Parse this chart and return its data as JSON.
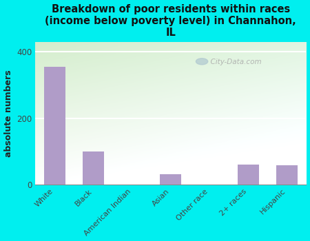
{
  "title": "Breakdown of poor residents within races\n(income below poverty level) in Channahon,\nIL",
  "ylabel": "absolute numbers",
  "categories": [
    "White",
    "Black",
    "American Indian",
    "Asian",
    "Other race",
    "2+ races",
    "Hispanic"
  ],
  "values": [
    355,
    100,
    0,
    30,
    0,
    60,
    58
  ],
  "bar_color": "#b09cc8",
  "bg_outer": "#00efef",
  "bg_plot_topleft": "#d4edcc",
  "bg_plot_topright": "#e8f5e0",
  "bg_plot_bottom": "#ffffff",
  "yticks": [
    0,
    200,
    400
  ],
  "ylim": [
    0,
    430
  ],
  "title_fontsize": 10.5,
  "ylabel_fontsize": 9,
  "watermark": "City-Data.com"
}
